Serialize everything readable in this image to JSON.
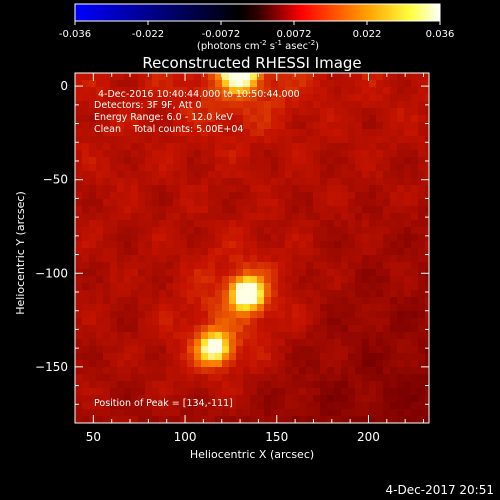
{
  "colorbar": {
    "ticks": [
      "-0.036",
      "-0.022",
      "-0.0072",
      "0.0072",
      "0.022",
      "0.036"
    ],
    "units_main": "(photons cm",
    "units_exp1": "-2",
    "units_mid1": " s",
    "units_exp2": "-1",
    "units_mid2": " asec",
    "units_exp3": "-2",
    "units_end": ")",
    "colors": [
      "#0000ff",
      "#000000",
      "#ff0000",
      "#ffff00",
      "#ffffff"
    ]
  },
  "chart_data": {
    "type": "heatmap",
    "title": "Reconstructed RHESSI Image",
    "xlabel": "Heliocentric X (arcsec)",
    "ylabel": "Heliocentric Y (arcsec)",
    "xlim": [
      40,
      233
    ],
    "ylim": [
      -180,
      7
    ],
    "xticks": [
      50,
      100,
      150,
      200
    ],
    "yticks": [
      0,
      -50,
      -100,
      -150
    ],
    "sources": [
      {
        "x": 134,
        "y": -111,
        "intensity": 1.0
      },
      {
        "x": 116,
        "y": -140,
        "intensity": 0.85
      },
      {
        "x": 130,
        "y": 7,
        "intensity": 1.0
      }
    ],
    "annotations": {
      "time": "4-Dec-2016 10:40:44.000 to 10:50:44.000",
      "detectors": "Detectors: 3F 9F, Att 0",
      "energy": "Energy Range: 6.0 - 12.0 keV",
      "clean": "Clean    Total counts: 5.00E+04",
      "peak": "Position of Peak = [134,-111]"
    }
  },
  "footer": {
    "timestamp": "4-Dec-2017 20:51"
  }
}
